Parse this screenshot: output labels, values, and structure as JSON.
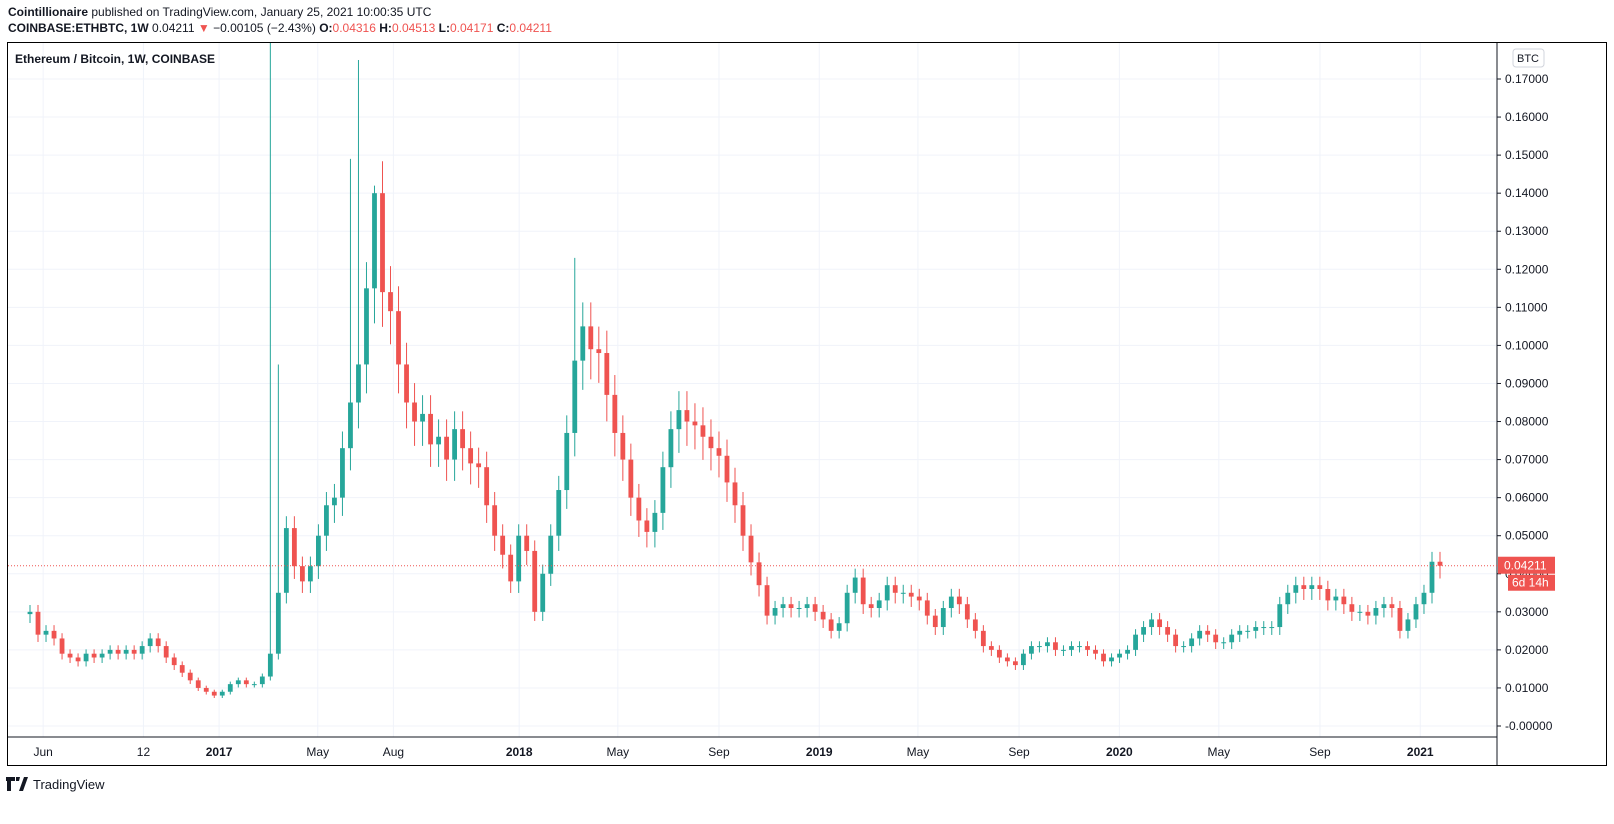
{
  "header": {
    "author": "Cointillionaire",
    "published_text": "published on TradingView.com, January 25, 2021 10:00:35 UTC",
    "symbol": "COINBASE:ETHBTC, 1W",
    "last": "0.04211",
    "change_arrow": "▼",
    "change": "−0.00105 (−2.43%)",
    "open_label": "O:",
    "open": "0.04316",
    "high_label": "H:",
    "high": "0.04513",
    "low_label": "L:",
    "low": "0.04171",
    "close_label": "C:",
    "close": "0.04211"
  },
  "legend_title": "Ethereum / Bitcoin, 1W, COINBASE",
  "currency_badge": "BTC",
  "price_tag": "0.04211",
  "countdown_tag": "6d 14h",
  "footer": {
    "brand": "TradingView"
  },
  "colors": {
    "up": "#26a69a",
    "down": "#ef5350",
    "grid": "#f0f3fa",
    "text": "#131722"
  },
  "chart_data": {
    "type": "candlestick",
    "title": "Ethereum / Bitcoin, 1W, COINBASE",
    "y_unit": "BTC",
    "ylim": [
      -0.003,
      0.178
    ],
    "y_ticks": [
      "0.17000",
      "0.16000",
      "0.15000",
      "0.14000",
      "0.13000",
      "0.12000",
      "0.11000",
      "0.10000",
      "0.09000",
      "0.08000",
      "0.07000",
      "0.06000",
      "0.05000",
      "0.04000",
      "0.03000",
      "0.02000",
      "0.01000",
      "-0.00000"
    ],
    "y_tick_values": [
      0.17,
      0.16,
      0.15,
      0.14,
      0.13,
      0.12,
      0.11,
      0.1,
      0.09,
      0.08,
      0.07,
      0.06,
      0.05,
      0.04,
      0.03,
      0.02,
      0.01,
      0.0
    ],
    "x_ticks": [
      "Jun",
      "12",
      "2017",
      "May",
      "Aug",
      "2018",
      "May",
      "Sep",
      "2019",
      "May",
      "Sep",
      "2020",
      "May",
      "Sep",
      "2021"
    ],
    "x_tick_dates": [
      "2016-06-01",
      "2016-10-01",
      "2017-01-01",
      "2017-05-01",
      "2017-08-01",
      "2018-01-01",
      "2018-05-01",
      "2018-09-01",
      "2019-01-01",
      "2019-05-01",
      "2019-09-01",
      "2020-01-01",
      "2020-05-01",
      "2020-09-01",
      "2021-01-01"
    ],
    "grid": true,
    "last_price_line": 0.04211,
    "candles_close": [
      0.03,
      0.024,
      0.025,
      0.023,
      0.019,
      0.018,
      0.017,
      0.019,
      0.018,
      0.019,
      0.02,
      0.019,
      0.02,
      0.019,
      0.021,
      0.023,
      0.021,
      0.018,
      0.016,
      0.014,
      0.012,
      0.01,
      0.009,
      0.008,
      0.009,
      0.011,
      0.012,
      0.011,
      0.011,
      0.013,
      0.019,
      0.035,
      0.052,
      0.042,
      0.038,
      0.042,
      0.05,
      0.058,
      0.06,
      0.073,
      0.085,
      0.095,
      0.115,
      0.14,
      0.114,
      0.109,
      0.095,
      0.085,
      0.08,
      0.082,
      0.074,
      0.076,
      0.07,
      0.078,
      0.073,
      0.069,
      0.068,
      0.058,
      0.05,
      0.045,
      0.038,
      0.05,
      0.046,
      0.03,
      0.04,
      0.05,
      0.062,
      0.077,
      0.096,
      0.105,
      0.099,
      0.098,
      0.087,
      0.077,
      0.07,
      0.06,
      0.054,
      0.051,
      0.056,
      0.068,
      0.078,
      0.083,
      0.08,
      0.079,
      0.076,
      0.073,
      0.071,
      0.064,
      0.058,
      0.05,
      0.043,
      0.037,
      0.029,
      0.031,
      0.032,
      0.031,
      0.031,
      0.032,
      0.03,
      0.028,
      0.025,
      0.027,
      0.035,
      0.039,
      0.032,
      0.031,
      0.033,
      0.037,
      0.035,
      0.035,
      0.034,
      0.033,
      0.029,
      0.026,
      0.031,
      0.034,
      0.032,
      0.028,
      0.025,
      0.021,
      0.02,
      0.018,
      0.017,
      0.016,
      0.019,
      0.021,
      0.021,
      0.022,
      0.02,
      0.02,
      0.021,
      0.021,
      0.02,
      0.019,
      0.017,
      0.018,
      0.019,
      0.02,
      0.024,
      0.026,
      0.028,
      0.026,
      0.024,
      0.021,
      0.021,
      0.023,
      0.025,
      0.024,
      0.022,
      0.022,
      0.024,
      0.025,
      0.025,
      0.026,
      0.026,
      0.026,
      0.032,
      0.035,
      0.037,
      0.036,
      0.037,
      0.036,
      0.033,
      0.034,
      0.032,
      0.03,
      0.03,
      0.029,
      0.031,
      0.032,
      0.031,
      0.025,
      0.028,
      0.032,
      0.035,
      0.04316,
      0.04211
    ]
  }
}
